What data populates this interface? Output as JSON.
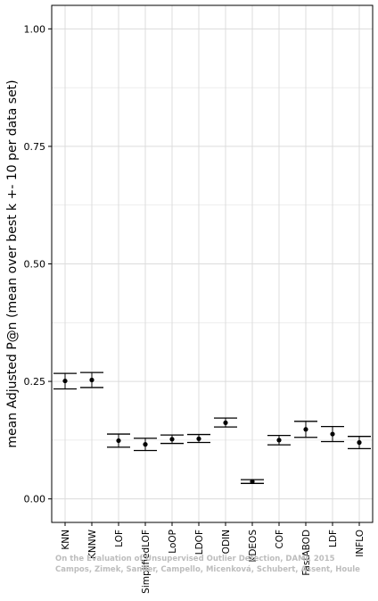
{
  "chart_data": {
    "type": "scatter",
    "error_bars": true,
    "title": "",
    "xlabel": "",
    "ylabel": "mean Adjusted P@n (mean over best k +- 10 per data set)",
    "ylim": [
      0,
      1.0
    ],
    "y_ticks": [
      "0.00",
      "0.25",
      "0.50",
      "0.75",
      "1.00"
    ],
    "grid": true,
    "categories": [
      "KNN",
      "KNNW",
      "LOF",
      "SimplifiedLOF",
      "LoOP",
      "LDOF",
      "ODIN",
      "KDEOS",
      "COF",
      "FastABOD",
      "LDF",
      "INFLO"
    ],
    "series": [
      {
        "values": [
          0.251,
          0.253,
          0.124,
          0.116,
          0.127,
          0.128,
          0.162,
          0.037,
          0.125,
          0.148,
          0.138,
          0.12
        ],
        "lower": [
          0.234,
          0.237,
          0.11,
          0.103,
          0.118,
          0.12,
          0.153,
          0.033,
          0.115,
          0.131,
          0.122,
          0.107
        ],
        "upper": [
          0.267,
          0.269,
          0.138,
          0.129,
          0.136,
          0.137,
          0.172,
          0.041,
          0.135,
          0.165,
          0.154,
          0.133
        ]
      }
    ]
  },
  "watermark": {
    "line1": "On the Evaluation of Unsupervised Outlier Detection, DAMI, 2015",
    "line2": "Campos, Zimek, Sander, Campello, Micenková, Schubert, Assent, Houle"
  },
  "colors": {
    "grid": "#dcdcdc",
    "axis": "#000000",
    "point": "#000000",
    "watermark": "#bdbdbd"
  }
}
